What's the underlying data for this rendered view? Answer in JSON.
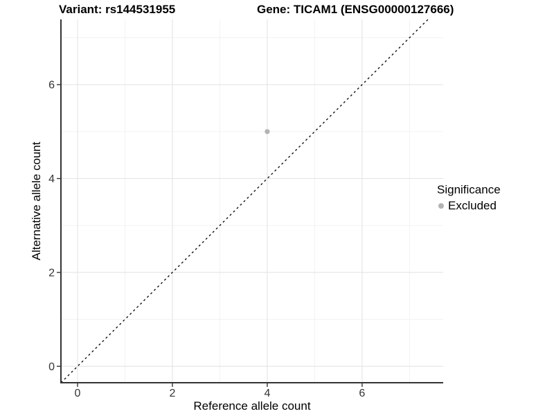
{
  "chart_data": {
    "type": "scatter",
    "title_left": "Variant: rs144531955",
    "title_right": "Gene: TICAM1 (ENSG00000127666)",
    "xlabel": "Reference allele count",
    "ylabel": "Alternative allele count",
    "xlim": [
      -0.35,
      7.71
    ],
    "ylim": [
      -0.35,
      7.39
    ],
    "x_major_ticks": [
      0,
      2,
      4,
      6
    ],
    "y_major_ticks": [
      0,
      2,
      4,
      6
    ],
    "x_minor_ticks": [
      1,
      3,
      5,
      7
    ],
    "y_minor_ticks": [
      1,
      3,
      5,
      7
    ],
    "grid": true,
    "points": [
      {
        "x": 4,
        "y": 5,
        "series": "Excluded"
      }
    ],
    "reference_line": {
      "type": "identity",
      "slope": 1,
      "intercept": 0,
      "style": "dashed"
    },
    "legend": {
      "position": "right",
      "title": "Significance",
      "entries": [
        {
          "label": "Excluded",
          "color": "#B3B3B3"
        }
      ]
    },
    "colors": {
      "background": "#FFFFFF",
      "major_grid": "#E4E4E4",
      "minor_grid": "#F1F1F1",
      "axis_line": "#333333",
      "tick_label": "#333333",
      "axis_title": "#000000",
      "reference_line": "#111111",
      "point_fill": "#B3B3B3"
    }
  }
}
